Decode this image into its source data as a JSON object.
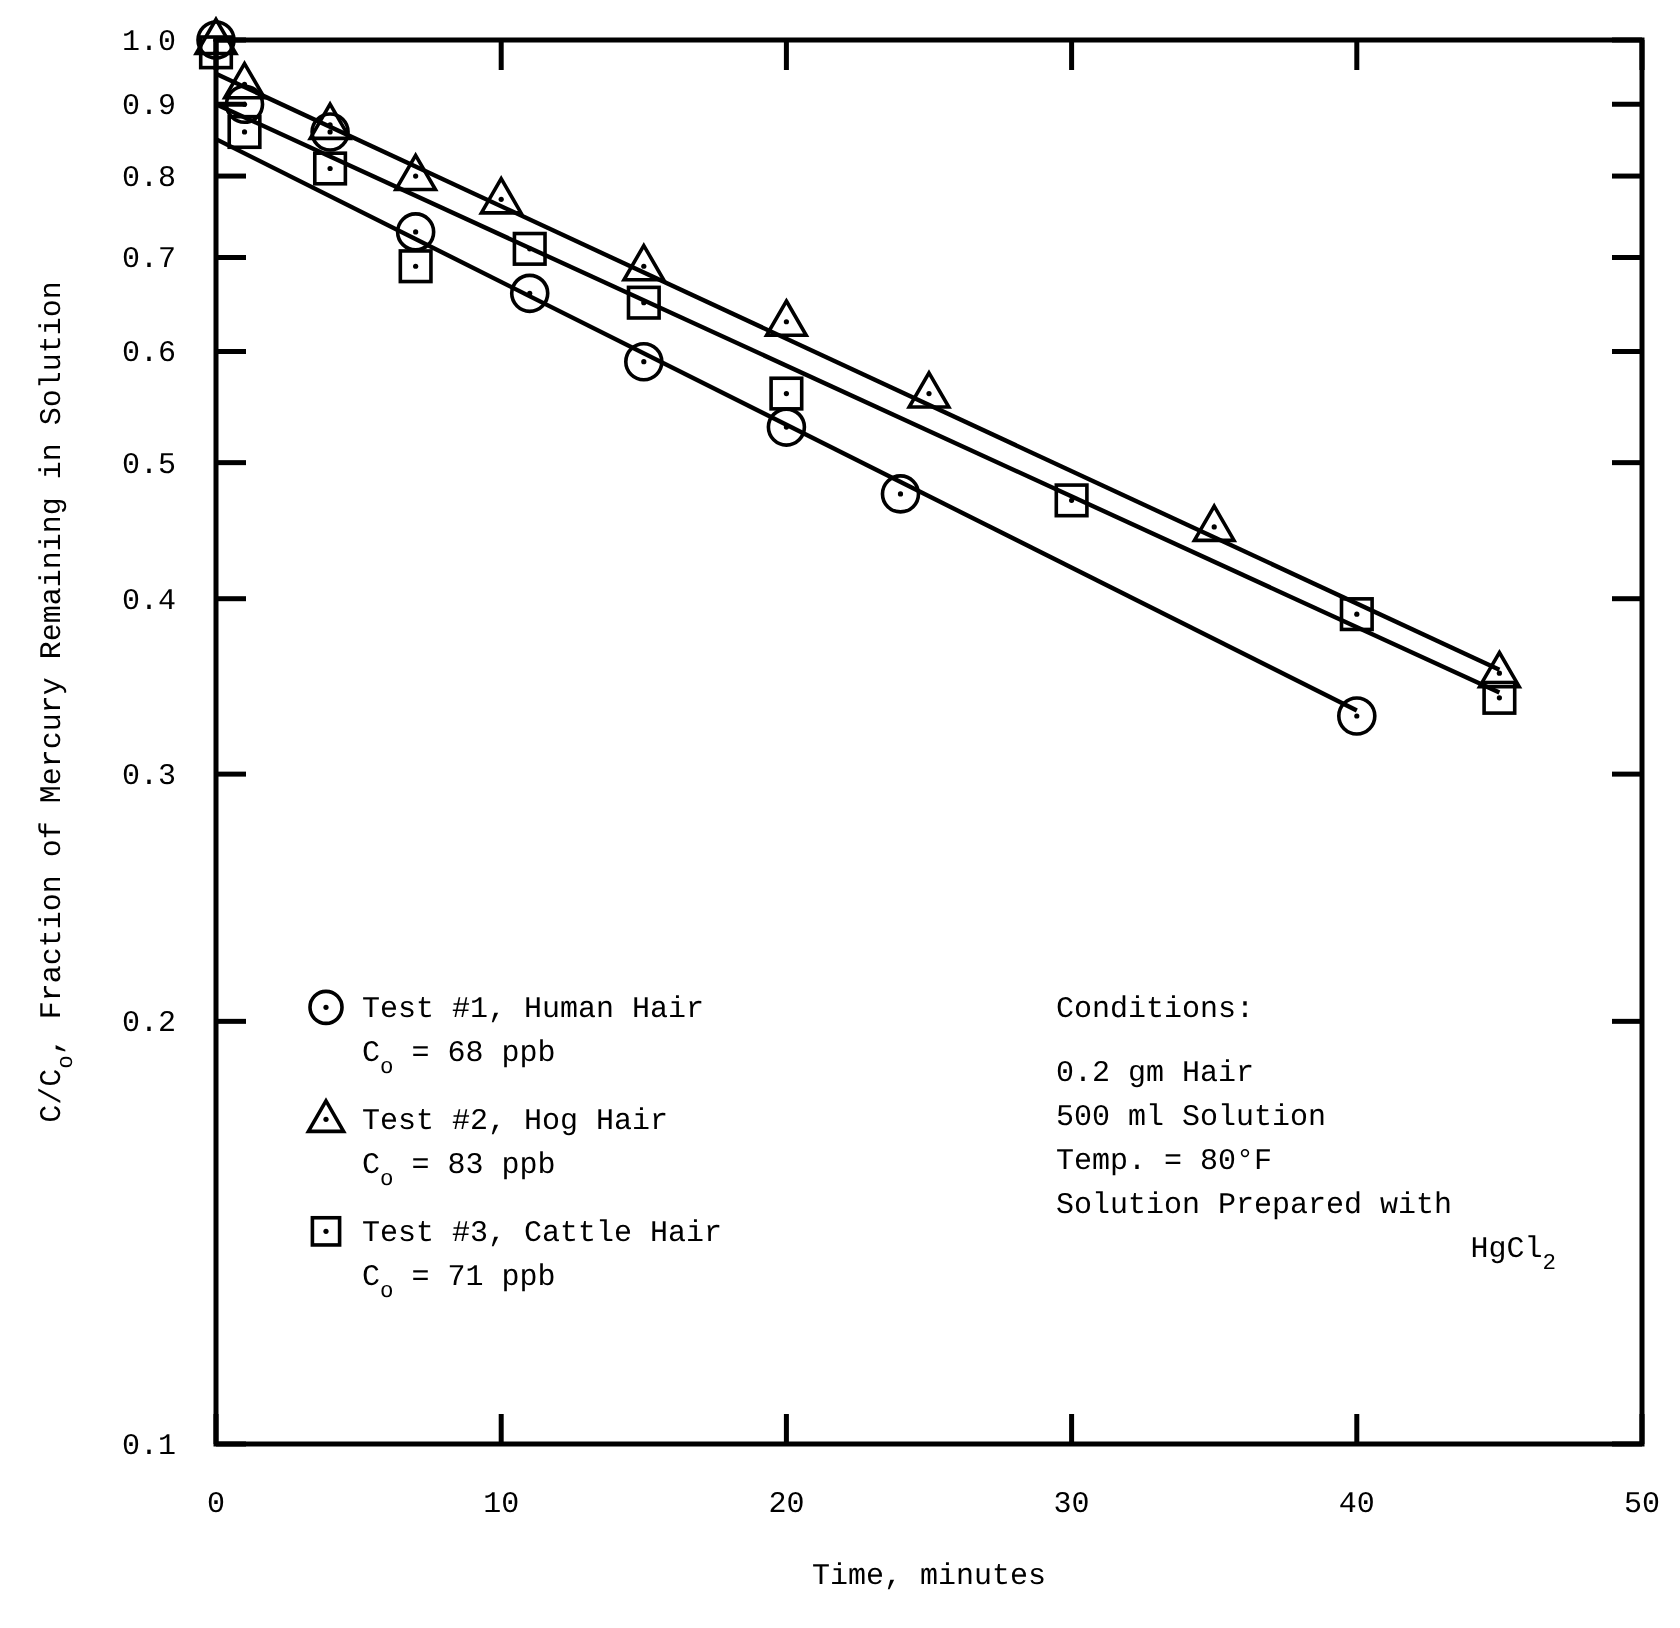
{
  "chart_data": {
    "type": "scatter",
    "xlabel": "Time, minutes",
    "ylabel": "C/C$_{o}$, Fraction of Mercury Remaining in Solution",
    "xlim": [
      0,
      50
    ],
    "xticks": [
      0,
      10,
      20,
      30,
      40,
      50
    ],
    "ylim": [
      0.1,
      1.0
    ],
    "yticks": [
      0.1,
      0.2,
      0.3,
      0.4,
      0.5,
      0.6,
      0.7,
      0.8,
      0.9,
      {
        "value": 1,
        "label": "1.0"
      }
    ],
    "log": "y",
    "grid": false,
    "legend": "bottom left",
    "series": [
      {
        "name": "Test #1, Human Hair\nC$_{o}$ = 68 ppb",
        "color": "#000000",
        "marker": "circle",
        "x": [
          0,
          1,
          4,
          7,
          11,
          15,
          20,
          24,
          40
        ],
        "values": [
          1.0,
          0.9,
          0.86,
          0.73,
          0.66,
          0.59,
          0.53,
          0.475,
          0.33
        ]
      },
      {
        "name": "Test #2, Hog Hair\nC$_{o}$ = 83 ppb",
        "color": "#000000",
        "marker": "triangle",
        "x": [
          0,
          1,
          4,
          7,
          10,
          15,
          20,
          25,
          35,
          45
        ],
        "values": [
          1.0,
          0.93,
          0.87,
          0.8,
          0.77,
          0.69,
          0.63,
          0.56,
          0.45,
          0.354
        ]
      },
      {
        "name": "Test #3, Cattle Hair\nC$_{o}$ = 71 ppb",
        "color": "#000000",
        "marker": "square",
        "x": [
          0,
          1,
          4,
          7,
          11,
          15,
          20,
          30,
          40,
          45
        ],
        "values": [
          0.98,
          0.86,
          0.81,
          0.69,
          0.71,
          0.65,
          0.56,
          0.47,
          0.39,
          0.34
        ]
      },
      {
        "type": "line",
        "color": "#000000",
        "marker": "none",
        "line_style": "solid",
        "x": [
          0,
          40
        ],
        "values": [
          0.85,
          0.333
        ]
      },
      {
        "type": "line",
        "color": "#000000",
        "marker": "none",
        "line_style": "solid",
        "x": [
          0,
          45
        ],
        "values": [
          0.946,
          0.356
        ]
      },
      {
        "type": "line",
        "color": "#000000",
        "marker": "none",
        "line_style": "solid",
        "x": [
          0,
          45
        ],
        "values": [
          0.9,
          0.343
        ]
      }
    ],
    "annotations": [
      "Conditions:\n0.2 gm Hair\n500 ml Solution\nTemp. = 80°F\nSolution Prepared with\nHgCl$_{2}$"
    ]
  }
}
